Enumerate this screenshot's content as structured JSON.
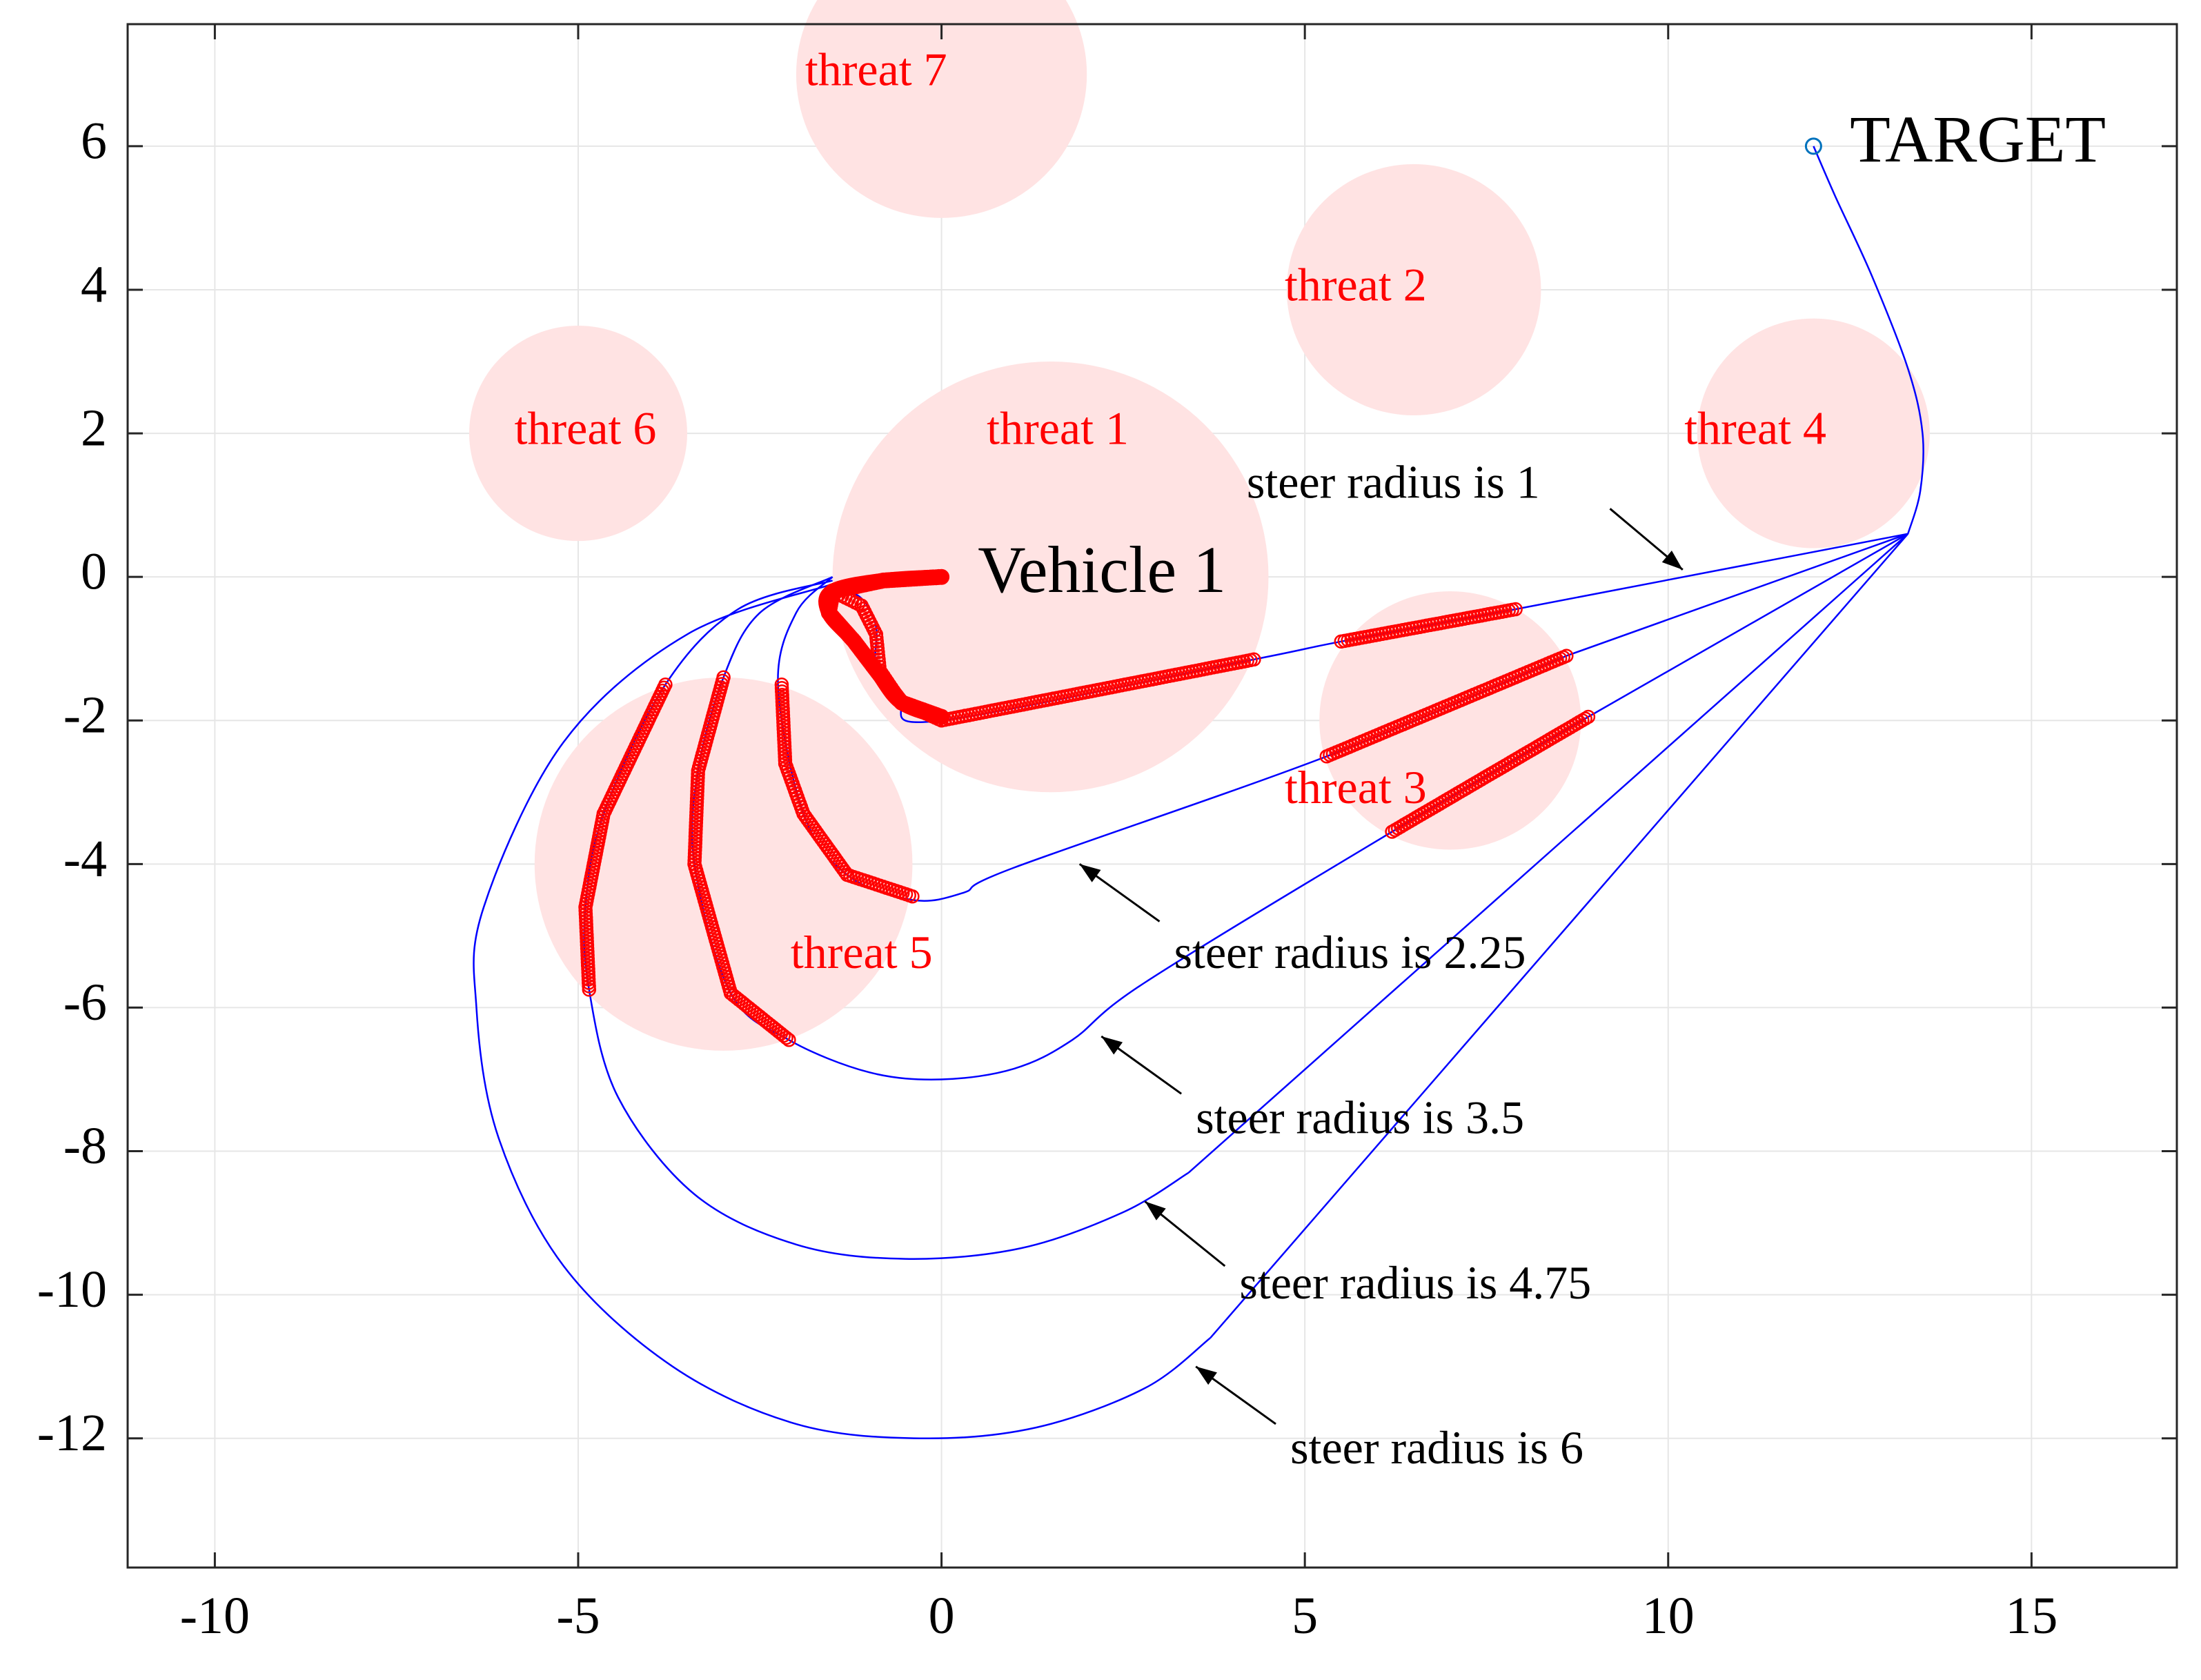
{
  "chart_data": {
    "type": "line",
    "title": "",
    "xlabel": "",
    "ylabel": "",
    "xlim": [
      -11.2,
      17
    ],
    "ylim": [
      -13.8,
      7.7
    ],
    "grid": true,
    "xticks": [
      -10,
      -5,
      0,
      5,
      10,
      15
    ],
    "yticks": [
      6,
      4,
      2,
      0,
      -2,
      -4,
      -6,
      -8,
      -10,
      -12
    ],
    "xtick_labels": [
      "-10",
      "-5",
      "0",
      "5",
      "10",
      "15"
    ],
    "ytick_labels": [
      "6",
      "4",
      "2",
      "0",
      "-2",
      "-4",
      "-6",
      "-8",
      "-10",
      "-12"
    ],
    "colors": {
      "threat_fill": "#ffe3e3",
      "threat_label": "#ff0000",
      "path": "#0000ff",
      "marker": "#ff0000",
      "target": "#0072bd"
    },
    "threats": [
      {
        "name": "threat 1",
        "label": "threat 1",
        "x": 1.5,
        "y": 0,
        "r": 3.0,
        "label_x": 1.6,
        "label_y": 2
      },
      {
        "name": "threat 2",
        "label": "threat 2",
        "x": 6.5,
        "y": 4,
        "r": 1.75,
        "label_x": 5.7,
        "label_y": 4
      },
      {
        "name": "threat 3",
        "label": "threat 3",
        "x": 7,
        "y": -2,
        "r": 1.8,
        "label_x": 5.7,
        "label_y": -3.0
      },
      {
        "name": "threat 4",
        "label": "threat 4",
        "x": 12,
        "y": 2,
        "r": 1.6,
        "label_x": 11.2,
        "label_y": 2
      },
      {
        "name": "threat 5",
        "label": "threat 5",
        "x": -3,
        "y": -4,
        "r": 2.6,
        "label_x": -1.1,
        "label_y": -5.3
      },
      {
        "name": "threat 6",
        "label": "threat 6",
        "x": -5,
        "y": 2,
        "r": 1.5,
        "label_x": -4.9,
        "label_y": 2
      },
      {
        "name": "threat 7",
        "label": "threat 7",
        "x": 0,
        "y": 7,
        "r": 2.0,
        "label_x": -0.9,
        "label_y": 7
      }
    ],
    "vehicle": {
      "label": "Vehicle 1",
      "x": 0,
      "y": 0,
      "label_x": 0.5,
      "label_y": 0
    },
    "target": {
      "label": "TARGET",
      "x": 12,
      "y": 6,
      "label_x": 12.5,
      "label_y": 6
    },
    "common_path": [
      [
        13.3,
        0.6
      ],
      [
        13.47,
        1.2
      ],
      [
        13.5,
        2.0
      ],
      [
        13.3,
        2.9
      ],
      [
        12.8,
        4.2
      ],
      [
        12.3,
        5.3
      ],
      [
        12.0,
        6.0
      ]
    ],
    "series": [
      {
        "name": "steer radius is 1",
        "label": "steer radius is 1",
        "radius": 1,
        "path": [
          [
            -1.5,
            -0.1
          ],
          [
            -1.1,
            -0.3
          ],
          [
            -0.9,
            -0.7
          ],
          [
            -0.9,
            -1.3
          ],
          [
            -0.6,
            -1.75
          ],
          [
            0,
            -2
          ],
          [
            4.3,
            -1.15
          ],
          [
            5.5,
            -0.9
          ],
          [
            7.9,
            -0.45
          ],
          [
            13.3,
            0.6
          ]
        ],
        "threat_segments": [
          [
            [
              -1.5,
              -0.2
            ],
            [
              -1.1,
              -0.4
            ],
            [
              -0.9,
              -0.8
            ],
            [
              -0.85,
              -1.3
            ],
            [
              -0.55,
              -1.75
            ],
            [
              0,
              -2
            ],
            [
              4.3,
              -1.15
            ]
          ],
          [
            [
              5.5,
              -0.9
            ],
            [
              7.9,
              -0.45
            ]
          ]
        ],
        "annotation": {
          "text_x": 4.2,
          "text_y": 1.25,
          "arrow_from": [
            9.2,
            0.95
          ],
          "arrow_to": [
            10.2,
            0.1
          ]
        }
      },
      {
        "name": "steer radius is 2.25",
        "label": "steer radius is 2.25",
        "radius": 2.25,
        "path": [
          [
            -1.5,
            0
          ],
          [
            -2.0,
            -0.5
          ],
          [
            -2.25,
            -1.5
          ],
          [
            -1.9,
            -3.3
          ],
          [
            -1.3,
            -4.15
          ],
          [
            -0.4,
            -4.5
          ],
          [
            0.3,
            -4.4
          ],
          [
            1.0,
            -4.05
          ],
          [
            5.3,
            -2.5
          ],
          [
            8.6,
            -1.1
          ],
          [
            13.3,
            0.6
          ]
        ],
        "threat_segments": [
          [
            [
              -2.2,
              -1.5
            ],
            [
              -2.15,
              -2.6
            ],
            [
              -1.9,
              -3.3
            ],
            [
              -1.3,
              -4.15
            ],
            [
              -0.4,
              -4.45
            ]
          ],
          [
            [
              5.3,
              -2.5
            ],
            [
              8.6,
              -1.1
            ]
          ]
        ],
        "annotation": {
          "text_x": 3.2,
          "text_y": -5.3,
          "arrow_from": [
            3.0,
            -4.8
          ],
          "arrow_to": [
            1.9,
            -4.0
          ]
        }
      },
      {
        "name": "steer radius is 3.5",
        "label": "steer radius is 3.5",
        "radius": 3.5,
        "path": [
          [
            -1.5,
            0
          ],
          [
            -2.5,
            -0.5
          ],
          [
            -3.0,
            -1.4
          ],
          [
            -3.35,
            -2.7
          ],
          [
            -3.4,
            -4.0
          ],
          [
            -2.9,
            -5.8
          ],
          [
            -2.1,
            -6.45
          ],
          [
            -1.0,
            -6.9
          ],
          [
            0,
            -7.0
          ],
          [
            1.0,
            -6.85
          ],
          [
            1.8,
            -6.45
          ],
          [
            2.8,
            -5.65
          ],
          [
            6.2,
            -3.55
          ],
          [
            8.9,
            -1.95
          ],
          [
            13.3,
            0.6
          ]
        ],
        "threat_segments": [
          [
            [
              -3.0,
              -1.4
            ],
            [
              -3.35,
              -2.7
            ],
            [
              -3.4,
              -4.0
            ],
            [
              -2.9,
              -5.8
            ],
            [
              -2.1,
              -6.45
            ]
          ],
          [
            [
              6.2,
              -3.55
            ],
            [
              8.9,
              -1.95
            ]
          ]
        ],
        "annotation": {
          "text_x": 3.5,
          "text_y": -7.6,
          "arrow_from": [
            3.3,
            -7.2
          ],
          "arrow_to": [
            2.2,
            -6.4
          ]
        }
      },
      {
        "name": "steer radius is 4.75",
        "label": "steer radius is 4.75",
        "radius": 4.75,
        "path": [
          [
            -1.5,
            -0.05
          ],
          [
            -2.8,
            -0.45
          ],
          [
            -3.8,
            -1.5
          ],
          [
            -4.65,
            -3.3
          ],
          [
            -4.9,
            -4.6
          ],
          [
            -4.85,
            -5.75
          ],
          [
            -4.45,
            -7.25
          ],
          [
            -3.4,
            -8.6
          ],
          [
            -2.0,
            -9.3
          ],
          [
            -0.5,
            -9.5
          ],
          [
            1.1,
            -9.35
          ],
          [
            2.5,
            -8.85
          ],
          [
            3.4,
            -8.3
          ],
          [
            13.3,
            0.6
          ]
        ],
        "threat_segments": [
          [
            [
              -3.8,
              -1.5
            ],
            [
              -4.65,
              -3.3
            ],
            [
              -4.9,
              -4.6
            ],
            [
              -4.85,
              -5.75
            ]
          ]
        ],
        "annotation": {
          "text_x": 4.1,
          "text_y": -9.9,
          "arrow_from": [
            3.9,
            -9.6
          ],
          "arrow_to": [
            2.8,
            -8.7
          ]
        }
      },
      {
        "name": "steer radius is 6",
        "label": "steer radius is 6",
        "radius": 6,
        "path": [
          [
            -1.5,
            -0.1
          ],
          [
            -3.5,
            -0.8
          ],
          [
            -5.2,
            -2.3
          ],
          [
            -6.3,
            -4.6
          ],
          [
            -6.4,
            -6.0
          ],
          [
            -6.1,
            -7.8
          ],
          [
            -5.2,
            -9.6
          ],
          [
            -3.7,
            -11.0
          ],
          [
            -2.0,
            -11.8
          ],
          [
            -0.3,
            -12.0
          ],
          [
            1.3,
            -11.85
          ],
          [
            2.8,
            -11.3
          ],
          [
            3.7,
            -10.6
          ],
          [
            13.3,
            0.6
          ]
        ],
        "threat_segments": [],
        "annotation": {
          "text_x": 4.8,
          "text_y": -12.2,
          "arrow_from": [
            4.6,
            -11.8
          ],
          "arrow_to": [
            3.5,
            -11.0
          ]
        }
      }
    ],
    "vehicle_arc": [
      [
        0,
        0
      ],
      [
        -0.8,
        -0.05
      ],
      [
        -1.5,
        -0.2
      ],
      [
        -1.55,
        -0.5
      ],
      [
        -1.2,
        -0.9
      ],
      [
        -0.9,
        -1.3
      ],
      [
        -0.55,
        -1.75
      ],
      [
        0,
        -1.95
      ]
    ]
  }
}
